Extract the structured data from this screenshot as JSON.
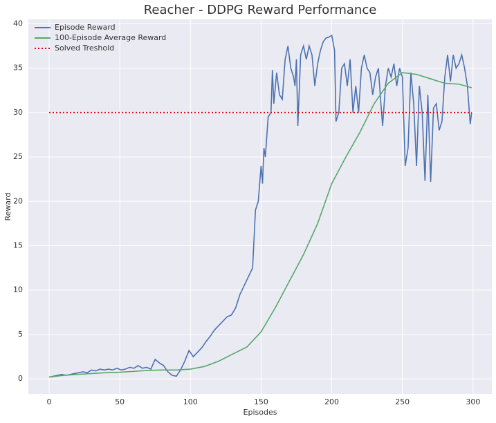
{
  "chart_data": {
    "type": "line",
    "title": "Reacher - DDPG Reward Performance",
    "x_label": "Episodes",
    "y_label": "Reward",
    "xlim": [
      -14.7,
      313.3
    ],
    "ylim": [
      -1.7,
      40.5
    ],
    "xticks": [
      0,
      50,
      100,
      150,
      200,
      250,
      300
    ],
    "yticks": [
      0,
      5,
      10,
      15,
      20,
      25,
      30,
      35,
      40
    ],
    "grid": true,
    "legend": "upper left",
    "series": [
      {
        "name": "Episode Reward",
        "color": "#4c72b0",
        "linestyle": "solid",
        "x": [
          0,
          3,
          6,
          9,
          12,
          15,
          18,
          21,
          24,
          27,
          30,
          33,
          36,
          39,
          42,
          45,
          48,
          51,
          54,
          57,
          60,
          63,
          66,
          69,
          72,
          75,
          78,
          81,
          84,
          87,
          90,
          93,
          96,
          99,
          102,
          105,
          108,
          111,
          114,
          117,
          120,
          123,
          126,
          129,
          132,
          135,
          138,
          141,
          144,
          146,
          148,
          150,
          151,
          152,
          153,
          155,
          157,
          158,
          159,
          161,
          163,
          165,
          167,
          169,
          171,
          173,
          174,
          175,
          176,
          178,
          180,
          182,
          184,
          186,
          188,
          190,
          192,
          194,
          196,
          198,
          200,
          202,
          203,
          205,
          207,
          209,
          211,
          213,
          215,
          217,
          219,
          221,
          223,
          225,
          227,
          229,
          231,
          233,
          235,
          236,
          238,
          240,
          242,
          244,
          246,
          248,
          250,
          252,
          254,
          256,
          258,
          260,
          262,
          264,
          266,
          268,
          270,
          272,
          274,
          276,
          278,
          280,
          282,
          284,
          286,
          288,
          290,
          292,
          294,
          296,
          298,
          299
        ],
        "values": [
          0.2,
          0.3,
          0.4,
          0.5,
          0.4,
          0.5,
          0.6,
          0.7,
          0.8,
          0.7,
          1.0,
          0.9,
          1.1,
          1.0,
          1.1,
          1.0,
          1.2,
          1.0,
          1.1,
          1.3,
          1.2,
          1.5,
          1.2,
          1.3,
          1.1,
          2.2,
          1.8,
          1.5,
          0.8,
          0.4,
          0.3,
          1.0,
          2.0,
          3.2,
          2.5,
          3.0,
          3.5,
          4.2,
          4.8,
          5.5,
          6.0,
          6.5,
          7.0,
          7.2,
          8.0,
          9.5,
          10.5,
          11.5,
          12.5,
          19.0,
          20,
          24,
          22,
          26,
          25,
          29.5,
          30,
          34.8,
          31,
          34.5,
          32,
          31.5,
          36,
          37.5,
          35,
          34,
          33,
          36,
          28.5,
          36.5,
          37.5,
          36,
          37.5,
          36.5,
          33,
          35.5,
          37,
          38,
          38.4,
          38.5,
          38.7,
          37,
          29,
          30,
          35,
          35.5,
          33,
          36,
          30,
          33,
          30,
          35,
          36.5,
          35,
          34.5,
          32,
          34,
          35,
          30.5,
          28.5,
          33,
          35,
          34,
          35.5,
          33,
          35,
          34,
          24,
          26,
          34.5,
          31,
          24,
          33,
          30,
          22.3,
          32,
          22.2,
          30.5,
          31,
          28,
          29,
          34,
          36.5,
          33.5,
          36.5,
          35,
          35.5,
          36.5,
          35,
          33,
          28.7,
          30
        ]
      },
      {
        "name": "100-Episode Average Reward",
        "color": "#55a868",
        "linestyle": "solid",
        "x": [
          0,
          10,
          20,
          30,
          40,
          50,
          60,
          70,
          80,
          90,
          100,
          110,
          120,
          130,
          140,
          150,
          160,
          170,
          180,
          190,
          200,
          210,
          220,
          230,
          240,
          250,
          260,
          270,
          280,
          290,
          299
        ],
        "values": [
          0.2,
          0.4,
          0.5,
          0.6,
          0.7,
          0.75,
          0.85,
          0.95,
          1.0,
          1.0,
          1.1,
          1.4,
          2.0,
          2.8,
          3.6,
          5.3,
          8.0,
          11.0,
          14.0,
          17.5,
          22.0,
          25.0,
          27.8,
          31.0,
          33.3,
          34.5,
          34.3,
          33.8,
          33.3,
          33.2,
          32.8
        ]
      },
      {
        "name": "Solved Treshold",
        "color": "#e8000b",
        "linestyle": "dotted",
        "x": [
          0,
          299
        ],
        "values": [
          30,
          30
        ]
      }
    ]
  }
}
